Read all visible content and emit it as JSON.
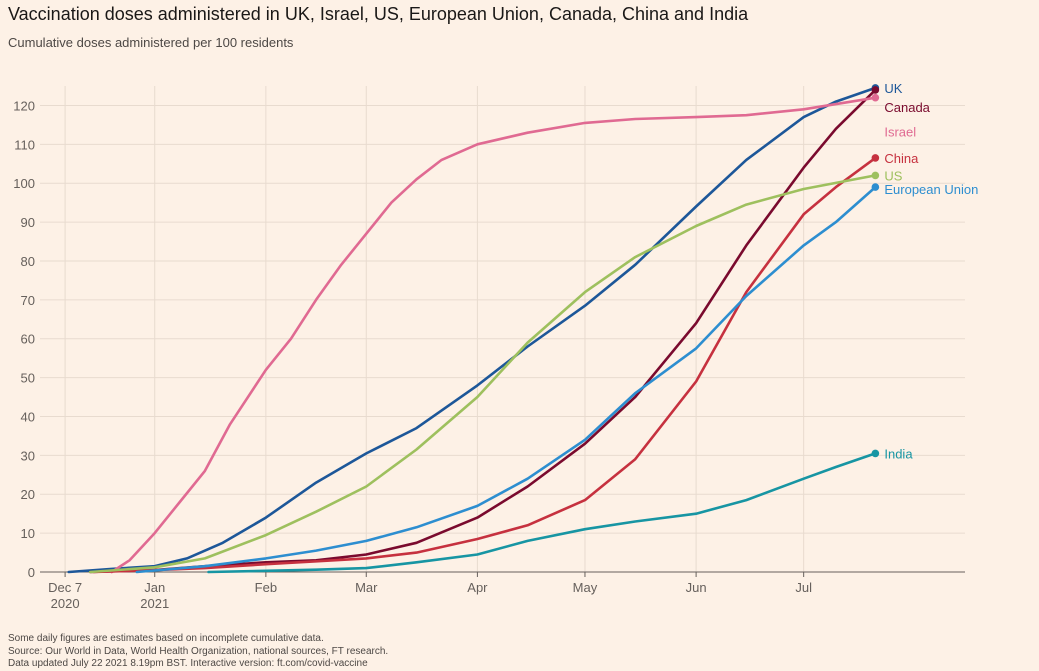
{
  "header": {
    "title": "Vaccination doses administered in UK, Israel, US, European Union, Canada, China and India",
    "subtitle": "Cumulative doses administered per 100 residents"
  },
  "footnotes": [
    "Some daily figures are estimates based on incomplete cumulative data.",
    "Source: Our World in Data, World Health Organization, national sources, FT research.",
    "Data updated July 22 2021 8.19pm BST. Interactive version: ft.com/covid-vaccine"
  ],
  "colors": {
    "background": "#fdf1e6",
    "grid": "#e8dbcf",
    "axis": "#66605c",
    "uk": "#1d5799",
    "canada": "#7a0a2e",
    "israel": "#e06a92",
    "china": "#c6313f",
    "us": "#9ec05e",
    "eu": "#2d8ed0",
    "india": "#1795a3"
  },
  "chart_data": {
    "type": "line",
    "title": "Vaccination doses administered in UK, Israel, US, European Union, Canada, China and India",
    "subtitle": "Cumulative doses administered per 100 residents",
    "xlabel": "",
    "ylabel": "",
    "xlim": [
      "2020-11-30",
      "2021-08-15"
    ],
    "ylim": [
      0,
      125
    ],
    "yticks": [
      0,
      10,
      20,
      30,
      40,
      50,
      60,
      70,
      80,
      90,
      100,
      110,
      120
    ],
    "xticks": [
      {
        "date": "2020-12-07",
        "label": "Dec 7",
        "sublabel": "2020"
      },
      {
        "date": "2021-01-01",
        "label": "Jan",
        "sublabel": "2021"
      },
      {
        "date": "2021-02-01",
        "label": "Feb",
        "sublabel": ""
      },
      {
        "date": "2021-03-01",
        "label": "Mar",
        "sublabel": ""
      },
      {
        "date": "2021-04-01",
        "label": "Apr",
        "sublabel": ""
      },
      {
        "date": "2021-05-01",
        "label": "May",
        "sublabel": ""
      },
      {
        "date": "2021-06-01",
        "label": "Jun",
        "sublabel": ""
      },
      {
        "date": "2021-07-01",
        "label": "Jul",
        "sublabel": ""
      }
    ],
    "grid": true,
    "legend": "direct labels at line ends",
    "series": [
      {
        "name": "UK",
        "key": "uk",
        "label_dy": 0,
        "points": [
          [
            "2020-12-08",
            0
          ],
          [
            "2020-12-20",
            0.8
          ],
          [
            "2021-01-01",
            1.5
          ],
          [
            "2021-01-10",
            3.5
          ],
          [
            "2021-01-20",
            7.5
          ],
          [
            "2021-02-01",
            14
          ],
          [
            "2021-02-15",
            23
          ],
          [
            "2021-03-01",
            30.5
          ],
          [
            "2021-03-15",
            37
          ],
          [
            "2021-04-01",
            48
          ],
          [
            "2021-04-15",
            58
          ],
          [
            "2021-05-01",
            68.5
          ],
          [
            "2021-05-15",
            79
          ],
          [
            "2021-06-01",
            94
          ],
          [
            "2021-06-15",
            106
          ],
          [
            "2021-07-01",
            117
          ],
          [
            "2021-07-10",
            121
          ],
          [
            "2021-07-21",
            124.5
          ]
        ]
      },
      {
        "name": "Canada",
        "key": "canada",
        "label_dy": 17,
        "points": [
          [
            "2020-12-14",
            0
          ],
          [
            "2021-01-01",
            0.5
          ],
          [
            "2021-01-15",
            1.5
          ],
          [
            "2021-02-01",
            2.5
          ],
          [
            "2021-02-15",
            3
          ],
          [
            "2021-03-01",
            4.5
          ],
          [
            "2021-03-15",
            7.5
          ],
          [
            "2021-04-01",
            14
          ],
          [
            "2021-04-15",
            22
          ],
          [
            "2021-05-01",
            33
          ],
          [
            "2021-05-15",
            45
          ],
          [
            "2021-06-01",
            64
          ],
          [
            "2021-06-15",
            84
          ],
          [
            "2021-07-01",
            104
          ],
          [
            "2021-07-10",
            114
          ],
          [
            "2021-07-21",
            124
          ]
        ]
      },
      {
        "name": "Israel",
        "key": "israel",
        "label_dy": 34,
        "points": [
          [
            "2020-12-20",
            0
          ],
          [
            "2020-12-25",
            3
          ],
          [
            "2021-01-01",
            10
          ],
          [
            "2021-01-08",
            18
          ],
          [
            "2021-01-15",
            26
          ],
          [
            "2021-01-22",
            38
          ],
          [
            "2021-02-01",
            52
          ],
          [
            "2021-02-08",
            60
          ],
          [
            "2021-02-15",
            70
          ],
          [
            "2021-02-22",
            79
          ],
          [
            "2021-03-01",
            87
          ],
          [
            "2021-03-08",
            95
          ],
          [
            "2021-03-15",
            101
          ],
          [
            "2021-03-22",
            106
          ],
          [
            "2021-04-01",
            110
          ],
          [
            "2021-04-15",
            113
          ],
          [
            "2021-05-01",
            115.5
          ],
          [
            "2021-05-15",
            116.5
          ],
          [
            "2021-06-01",
            117
          ],
          [
            "2021-06-15",
            117.5
          ],
          [
            "2021-07-01",
            119
          ],
          [
            "2021-07-21",
            122
          ]
        ]
      },
      {
        "name": "China",
        "key": "china",
        "label_dy": 0,
        "points": [
          [
            "2020-12-15",
            0
          ],
          [
            "2021-01-01",
            0.5
          ],
          [
            "2021-01-15",
            1
          ],
          [
            "2021-02-01",
            2
          ],
          [
            "2021-03-01",
            3.5
          ],
          [
            "2021-03-15",
            5
          ],
          [
            "2021-04-01",
            8.5
          ],
          [
            "2021-04-15",
            12
          ],
          [
            "2021-05-01",
            18.5
          ],
          [
            "2021-05-15",
            29
          ],
          [
            "2021-06-01",
            49
          ],
          [
            "2021-06-15",
            72
          ],
          [
            "2021-07-01",
            92
          ],
          [
            "2021-07-10",
            99
          ],
          [
            "2021-07-21",
            106.5
          ]
        ]
      },
      {
        "name": "US",
        "key": "us",
        "label_dy": 0,
        "points": [
          [
            "2020-12-14",
            0
          ],
          [
            "2021-01-01",
            1.2
          ],
          [
            "2021-01-15",
            3.5
          ],
          [
            "2021-02-01",
            9.5
          ],
          [
            "2021-02-15",
            15.5
          ],
          [
            "2021-03-01",
            22
          ],
          [
            "2021-03-15",
            31.5
          ],
          [
            "2021-04-01",
            45
          ],
          [
            "2021-04-15",
            59
          ],
          [
            "2021-05-01",
            72
          ],
          [
            "2021-05-15",
            81
          ],
          [
            "2021-06-01",
            89
          ],
          [
            "2021-06-15",
            94.5
          ],
          [
            "2021-07-01",
            98.5
          ],
          [
            "2021-07-21",
            102
          ]
        ]
      },
      {
        "name": "European Union",
        "key": "eu",
        "label_dy": 2,
        "points": [
          [
            "2020-12-27",
            0
          ],
          [
            "2021-01-15",
            1.5
          ],
          [
            "2021-02-01",
            3.5
          ],
          [
            "2021-02-15",
            5.5
          ],
          [
            "2021-03-01",
            8
          ],
          [
            "2021-03-15",
            11.5
          ],
          [
            "2021-04-01",
            17
          ],
          [
            "2021-04-15",
            24
          ],
          [
            "2021-05-01",
            34
          ],
          [
            "2021-05-15",
            46
          ],
          [
            "2021-06-01",
            57.5
          ],
          [
            "2021-06-15",
            71
          ],
          [
            "2021-07-01",
            84
          ],
          [
            "2021-07-10",
            90
          ],
          [
            "2021-07-21",
            99
          ]
        ]
      },
      {
        "name": "India",
        "key": "india",
        "label_dy": 0,
        "points": [
          [
            "2021-01-16",
            0
          ],
          [
            "2021-02-01",
            0.3
          ],
          [
            "2021-02-15",
            0.6
          ],
          [
            "2021-03-01",
            1
          ],
          [
            "2021-03-15",
            2.5
          ],
          [
            "2021-04-01",
            4.5
          ],
          [
            "2021-04-15",
            8
          ],
          [
            "2021-05-01",
            11
          ],
          [
            "2021-05-15",
            13
          ],
          [
            "2021-06-01",
            15
          ],
          [
            "2021-06-15",
            18.5
          ],
          [
            "2021-07-01",
            24
          ],
          [
            "2021-07-10",
            27
          ],
          [
            "2021-07-21",
            30.5
          ]
        ]
      }
    ]
  }
}
